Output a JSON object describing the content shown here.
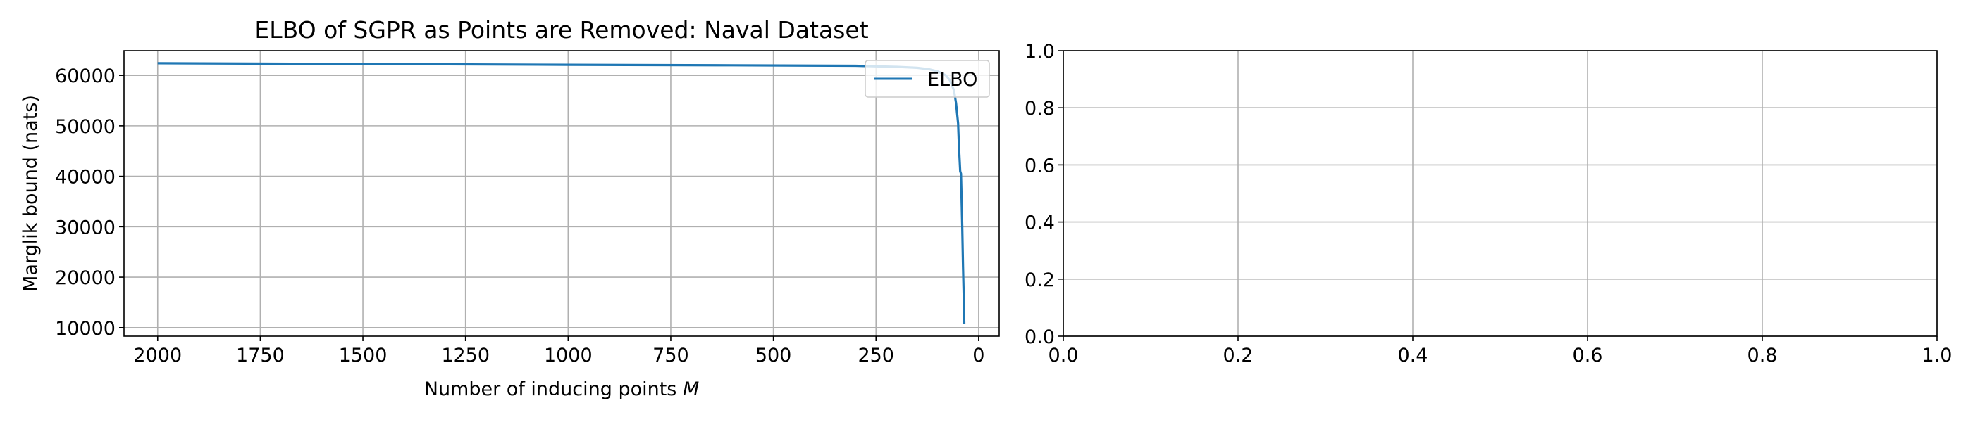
{
  "chart_data": [
    {
      "type": "line",
      "title": "ELBO of SGPR as Points are Removed: Naval Dataset",
      "xlabel": "Number of inducing points M",
      "xlabel_prefix": "Number of inducing points ",
      "xlabel_var": "M",
      "ylabel": "Marglik bound (nats)",
      "xlim": [
        2082,
        -50
      ],
      "ylim": [
        8300,
        64900
      ],
      "x_inverted": true,
      "grid": true,
      "legend": "top-right",
      "xticks": [
        2000,
        1750,
        1500,
        1250,
        1000,
        750,
        500,
        250,
        0
      ],
      "xtick_labels": [
        "2000",
        "1750",
        "1500",
        "1250",
        "1000",
        "750",
        "500",
        "250",
        "0"
      ],
      "yticks": [
        10000,
        20000,
        30000,
        40000,
        50000,
        60000
      ],
      "ytick_labels": [
        "10000",
        "20000",
        "30000",
        "40000",
        "50000",
        "60000"
      ],
      "series": [
        {
          "name": "ELBO",
          "color": "#1f77b4",
          "x": [
            2000,
            1500,
            1000,
            600,
            300,
            200,
            150,
            120,
            100,
            80,
            70,
            60,
            55,
            50,
            48,
            45,
            43,
            40,
            38,
            36,
            35
          ],
          "y": [
            62400,
            62250,
            62100,
            62000,
            61900,
            61700,
            61500,
            61200,
            60800,
            60000,
            59000,
            57000,
            54500,
            50500,
            46000,
            41000,
            40500,
            30000,
            22000,
            15000,
            10800
          ]
        }
      ]
    },
    {
      "type": "line",
      "title": "",
      "xlabel": "",
      "ylabel": "",
      "xlim": [
        0,
        1
      ],
      "ylim": [
        0,
        1
      ],
      "grid": true,
      "xticks": [
        0,
        0.2,
        0.4,
        0.6,
        0.8,
        1.0
      ],
      "xtick_labels": [
        "0.0",
        "0.2",
        "0.4",
        "0.6",
        "0.8",
        "1.0"
      ],
      "yticks": [
        0,
        0.2,
        0.4,
        0.6,
        0.8,
        1.0
      ],
      "ytick_labels": [
        "0.0",
        "0.2",
        "0.4",
        "0.6",
        "0.8",
        "1.0"
      ],
      "series": []
    }
  ]
}
